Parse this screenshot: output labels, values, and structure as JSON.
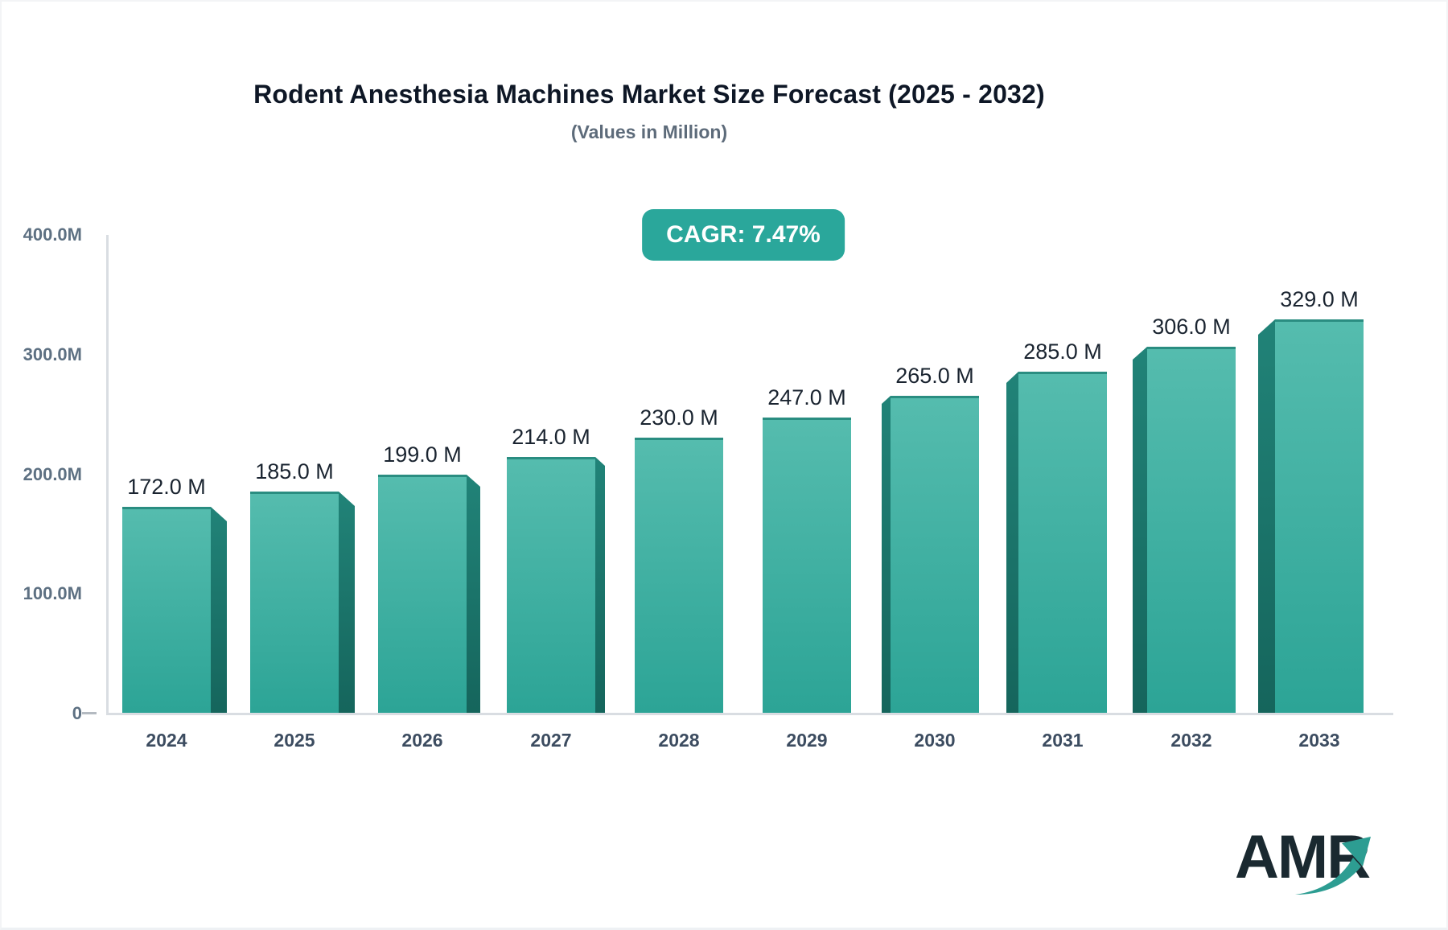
{
  "title": "Rodent Anesthesia Machines Market Size Forecast (2025 - 2032)",
  "subtitle": "(Values in Million)",
  "badge": {
    "label": "CAGR: 7.47%",
    "bg_color": "#2aa79b"
  },
  "chart_data": {
    "type": "bar",
    "categories": [
      "2024",
      "2025",
      "2026",
      "2027",
      "2028",
      "2029",
      "2030",
      "2031",
      "2032",
      "2033"
    ],
    "values": [
      172.0,
      185.0,
      199.0,
      214.0,
      230.0,
      247.0,
      265.0,
      285.0,
      306.0,
      329.0
    ],
    "value_labels": [
      "172.0 M",
      "185.0 M",
      "199.0 M",
      "214.0 M",
      "230.0 M",
      "247.0 M",
      "265.0 M",
      "285.0 M",
      "306.0 M",
      "329.0 M"
    ],
    "unit": "Million",
    "ylim": [
      0,
      400
    ],
    "y_ticks": [
      {
        "value": 400,
        "label": "400.0M"
      },
      {
        "value": 300,
        "label": "300.0M"
      },
      {
        "value": 200,
        "label": "200.0M"
      },
      {
        "value": 100,
        "label": "100.0M"
      },
      {
        "value": 0,
        "label": "0"
      }
    ],
    "grid": false,
    "legend": "none",
    "colors": {
      "bar_front_top": "#55bcae",
      "bar_front_bottom": "#2ca496",
      "bar_top_edge": "#2a8d81",
      "bar_side_top": "#218378",
      "bar_side_bottom": "#15655c"
    }
  },
  "logo": {
    "text": "AMR",
    "arrow_color": "#2d9d92"
  }
}
